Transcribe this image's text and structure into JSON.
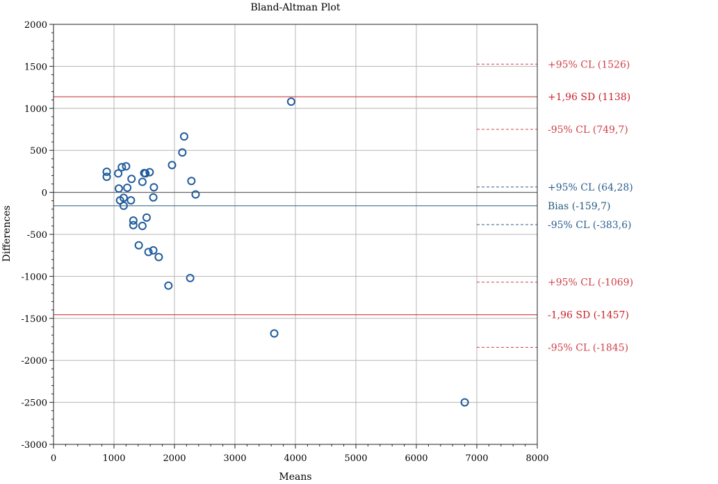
{
  "chart_data": {
    "type": "scatter",
    "title": "Bland-Altman Plot",
    "xlabel": "Means",
    "ylabel": "Differences",
    "xlim": [
      0,
      8000
    ],
    "ylim": [
      -3000,
      2000
    ],
    "x_ticks": [
      0,
      1000,
      2000,
      3000,
      4000,
      5000,
      6000,
      7000,
      8000
    ],
    "y_ticks": [
      -3000,
      -2500,
      -2000,
      -1500,
      -1000,
      -500,
      0,
      500,
      1000,
      1500,
      2000
    ],
    "x_tick_labels": [
      "0",
      "1000",
      "2000",
      "3000",
      "4000",
      "5000",
      "6000",
      "7000",
      "8000"
    ],
    "y_tick_labels": [
      "-3000",
      "-2500",
      "-2000",
      "-1500",
      "-1000",
      "-500",
      "0",
      "500",
      "1000",
      "1500",
      "2000"
    ],
    "grid": true,
    "points": [
      {
        "x": 880,
        "y": 245
      },
      {
        "x": 880,
        "y": 185
      },
      {
        "x": 1070,
        "y": 225
      },
      {
        "x": 1080,
        "y": 45
      },
      {
        "x": 1100,
        "y": -95
      },
      {
        "x": 1130,
        "y": 300
      },
      {
        "x": 1160,
        "y": -65
      },
      {
        "x": 1160,
        "y": -160
      },
      {
        "x": 1200,
        "y": 310
      },
      {
        "x": 1220,
        "y": 55
      },
      {
        "x": 1280,
        "y": -95
      },
      {
        "x": 1290,
        "y": 160
      },
      {
        "x": 1320,
        "y": -335
      },
      {
        "x": 1320,
        "y": -390
      },
      {
        "x": 1410,
        "y": -630
      },
      {
        "x": 1470,
        "y": -400
      },
      {
        "x": 1470,
        "y": 125
      },
      {
        "x": 1500,
        "y": 230
      },
      {
        "x": 1520,
        "y": 225
      },
      {
        "x": 1540,
        "y": -300
      },
      {
        "x": 1570,
        "y": -710
      },
      {
        "x": 1590,
        "y": 240
      },
      {
        "x": 1650,
        "y": -690
      },
      {
        "x": 1650,
        "y": -60
      },
      {
        "x": 1660,
        "y": 60
      },
      {
        "x": 1740,
        "y": -770
      },
      {
        "x": 1900,
        "y": -1110
      },
      {
        "x": 1960,
        "y": 325
      },
      {
        "x": 2130,
        "y": 475
      },
      {
        "x": 2160,
        "y": 665
      },
      {
        "x": 2260,
        "y": -1020
      },
      {
        "x": 2280,
        "y": 135
      },
      {
        "x": 2350,
        "y": -25
      },
      {
        "x": 3650,
        "y": -1680
      },
      {
        "x": 3930,
        "y": 1080
      },
      {
        "x": 6800,
        "y": -2500
      }
    ],
    "reference_lines": [
      {
        "y": 1138,
        "label": "+1,96 SD (1138)",
        "style": "solid",
        "color": "#c8202a"
      },
      {
        "y": -1457,
        "label": "-1,96 SD (-1457)",
        "style": "solid",
        "color": "#c8202a"
      },
      {
        "y": -159.7,
        "label": "Bias (-159,7)",
        "style": "solid",
        "color": "#1f5a7a"
      },
      {
        "y": 0,
        "label": "",
        "style": "solid",
        "color": "#555555"
      },
      {
        "y": 1526,
        "label": "+95% CL (1526)",
        "style": "dashed",
        "color": "#d0404a",
        "x_start": 7000
      },
      {
        "y": 749.7,
        "label": "-95% CL (749,7)",
        "style": "dashed",
        "color": "#d0404a",
        "x_start": 7000
      },
      {
        "y": 64.28,
        "label": "+95% CL (64,28)",
        "style": "dashed",
        "color": "#2a5d8f",
        "x_start": 7000
      },
      {
        "y": -383.6,
        "label": "-95% CL (-383,6)",
        "style": "dashed",
        "color": "#2a5d8f",
        "x_start": 7000
      },
      {
        "y": -1069,
        "label": "+95% CL (-1069)",
        "style": "dashed",
        "color": "#d0404a",
        "x_start": 7000
      },
      {
        "y": -1845,
        "label": "-95% CL (-1845)",
        "style": "dashed",
        "color": "#d0404a",
        "x_start": 7000
      }
    ],
    "marker_color": "#1f5a9a",
    "red_label_color": "#c8202a",
    "blue_label_color": "#1f5a7a"
  }
}
